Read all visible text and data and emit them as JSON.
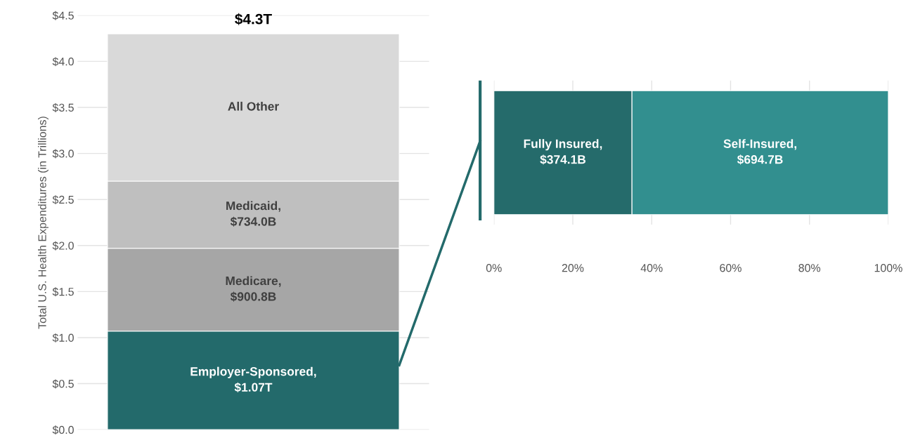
{
  "chart_data": [
    {
      "type": "bar",
      "stacked": true,
      "categories": [
        null
      ],
      "ylabel": "Total U.S. Health Expenditures (in Trillions)",
      "ylim": [
        0,
        4.5
      ],
      "yticks": [
        {
          "value": 0,
          "label": "$0.0"
        },
        {
          "value": 0.5,
          "label": "$0.5"
        },
        {
          "value": 1,
          "label": "$1.0"
        },
        {
          "value": 1.5,
          "label": "$1.5"
        },
        {
          "value": 2,
          "label": "$2.0"
        },
        {
          "value": 2.5,
          "label": "$2.5"
        },
        {
          "value": 3,
          "label": "$3.0"
        },
        {
          "value": 3.5,
          "label": "$3.5"
        },
        {
          "value": 4,
          "label": "$4.0"
        },
        {
          "value": 4.5,
          "label": "$4.5"
        }
      ],
      "series": [
        {
          "color": "#236a6b",
          "values": [
            1.07
          ]
        },
        {
          "color": "#a6a6a6",
          "values": [
            0.9
          ]
        },
        {
          "color": "#bfbfbf",
          "values": [
            0.73
          ]
        },
        {
          "color": "#d9d9d9",
          "values": [
            1.6
          ]
        }
      ],
      "annotations": [
        "Employer-Sponsored,\n$1.07T",
        "Medicare,\n$900.8B",
        "Medicaid,\n$734.0B",
        "All Other"
      ],
      "title": "$4.3T",
      "grid": "y",
      "tick_labels": "y"
    },
    {
      "type": "bar",
      "stacked": true,
      "orientation": "horizontal",
      "categories": [
        null
      ],
      "xlim": [
        0,
        100
      ],
      "xticks": [
        {
          "value": 0,
          "label": "0%"
        },
        {
          "value": 20,
          "label": "20%"
        },
        {
          "value": 40,
          "label": "40%"
        },
        {
          "value": 60,
          "label": "60%"
        },
        {
          "value": 80,
          "label": "80%"
        },
        {
          "value": 100,
          "label": "100%"
        }
      ],
      "series": [
        {
          "color": "#256b6b",
          "values": [
            35
          ]
        },
        {
          "color": "#328f8f",
          "values": [
            65
          ]
        }
      ],
      "annotations": [
        "Fully Insured,\n$374.1B",
        "Self-Insured,\n$694.7B"
      ],
      "grid": "x",
      "tick_labels": "x"
    }
  ]
}
